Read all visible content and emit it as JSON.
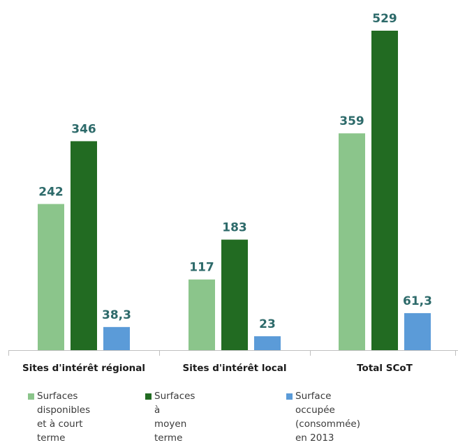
{
  "chart_data": {
    "type": "bar",
    "categories": [
      "Sites d'intérêt régional",
      "Sites d'intérêt local",
      "Total SCoT"
    ],
    "series": [
      {
        "name": "Surfaces disponibles\net à court terme",
        "color": "#8bc58b",
        "values": [
          242,
          117,
          359
        ],
        "labels": [
          "242",
          "117",
          "359"
        ]
      },
      {
        "name": "Surfaces à moyen terme",
        "color": "#226b22",
        "values": [
          346,
          183,
          529
        ],
        "labels": [
          "346",
          "183",
          "529"
        ]
      },
      {
        "name": "Surface occupée (consommée)\nen 2013",
        "color": "#5b9bd8",
        "values": [
          38.3,
          23,
          61.3
        ],
        "labels": [
          "38,3",
          "23",
          "61,3"
        ]
      }
    ],
    "ylim": [
      0,
      600
    ],
    "grid": false,
    "legend_position": "bottom",
    "value_label_color": "#2d6a6a",
    "axis_color": "#bfbfbf"
  }
}
